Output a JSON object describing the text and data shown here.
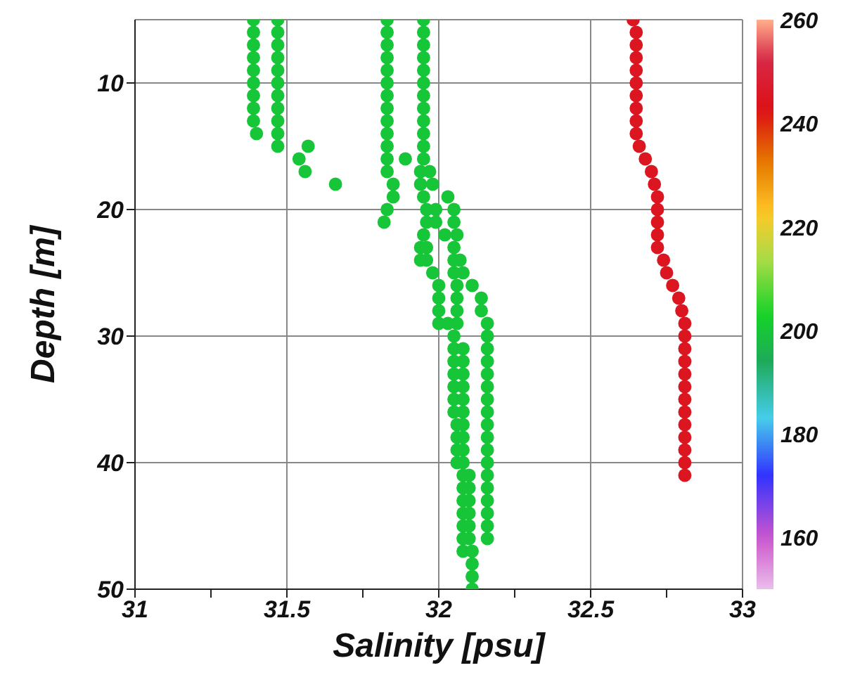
{
  "chart_data": {
    "type": "scatter",
    "xlabel": "Salinity [psu]",
    "ylabel": "Depth [m]",
    "xlim": [
      31,
      33
    ],
    "xticks": [
      31,
      {
        "value": 31.25,
        "label": null
      },
      31.5,
      {
        "value": 31.75,
        "label": null
      },
      32,
      {
        "value": 32.25,
        "label": null
      },
      32.5,
      {
        "value": 32.75,
        "label": null
      },
      33
    ],
    "ylim": [
      50,
      5
    ],
    "yticks": [
      10,
      20,
      30,
      40,
      50
    ],
    "grid": true,
    "clim": [
      150,
      260
    ],
    "cticks": [
      160,
      180,
      200,
      220,
      240,
      260
    ],
    "series": [
      {
        "x": [
          31.39,
          31.39,
          31.39,
          31.39,
          31.39,
          31.39,
          31.39,
          31.39,
          31.39,
          31.4
        ],
        "values": [
          5,
          6,
          7,
          8,
          9,
          10,
          11,
          12,
          13,
          14
        ],
        "cvalues": [
          200,
          200,
          200,
          200,
          200,
          200,
          200,
          200,
          200,
          200
        ]
      },
      {
        "x": [
          31.47,
          31.47,
          31.47,
          31.47,
          31.47,
          31.47,
          31.47,
          31.47,
          31.47,
          31.47,
          31.47
        ],
        "values": [
          5,
          6,
          7,
          8,
          9,
          10,
          11,
          12,
          13,
          14,
          15
        ],
        "cvalues": [
          200,
          200,
          200,
          200,
          200,
          200,
          200,
          200,
          200,
          200,
          200
        ]
      },
      {
        "x": [
          31.57,
          31.54,
          31.56,
          31.66,
          31.89
        ],
        "values": [
          15,
          16,
          17,
          18,
          16
        ],
        "cvalues": [
          200,
          200,
          200,
          200,
          200
        ]
      },
      {
        "x": [
          31.83,
          31.83,
          31.83,
          31.83,
          31.83,
          31.83,
          31.83,
          31.83,
          31.83,
          31.83,
          31.83,
          31.83,
          31.83,
          31.85,
          31.85,
          31.83,
          31.82
        ],
        "values": [
          5,
          6,
          7,
          8,
          9,
          10,
          11,
          12,
          13,
          14,
          15,
          16,
          17,
          18,
          19,
          20,
          21
        ],
        "cvalues": [
          200,
          200,
          200,
          200,
          200,
          200,
          200,
          200,
          200,
          200,
          200,
          200,
          200,
          200,
          200,
          200,
          200
        ]
      },
      {
        "x": [
          31.95,
          31.95,
          31.95,
          31.95,
          31.95,
          31.95,
          31.95,
          31.95,
          31.95,
          31.95,
          31.95,
          31.95,
          31.94,
          31.94,
          31.95,
          31.96,
          31.96,
          31.95,
          31.94,
          31.94,
          31.98,
          32,
          32,
          32,
          32,
          32.05,
          32.05,
          32.05,
          32.05,
          32.05,
          32.05,
          32.05,
          32.06,
          32.06,
          32.06,
          32.06,
          32.08,
          32.08,
          32.08,
          32.08,
          32.08,
          32.08,
          32.08,
          32.11,
          32.11,
          32.11
        ],
        "values": [
          5,
          6,
          7,
          8,
          9,
          10,
          11,
          12,
          13,
          14,
          15,
          16,
          17,
          18,
          19,
          20,
          21,
          22,
          23,
          24,
          25,
          26,
          27,
          28,
          29,
          30,
          31,
          32,
          33,
          34,
          35,
          36,
          37,
          38,
          39,
          40,
          41,
          42,
          43,
          44,
          45,
          46,
          47,
          48,
          49,
          50
        ],
        "cvalues": [
          200,
          200,
          200,
          200,
          200,
          200,
          200,
          200,
          200,
          200,
          200,
          200,
          200,
          200,
          200,
          200,
          200,
          200,
          200,
          200,
          200,
          200,
          200,
          200,
          200,
          200,
          200,
          200,
          200,
          200,
          200,
          200,
          200,
          200,
          200,
          200,
          200,
          200,
          200,
          200,
          200,
          200,
          200,
          200,
          200,
          200
        ]
      },
      {
        "x": [
          32.03,
          32.05,
          32.05,
          32.06,
          32.05,
          32.05,
          32.05,
          32.06,
          32.06,
          32.06,
          32.06,
          32.08,
          32.08,
          32.08,
          32.08,
          32.08,
          32.08,
          32.08,
          32.08,
          32.08,
          32.08,
          32.1,
          32.1,
          32.1,
          32.1,
          32.1,
          32.1,
          32.11
        ],
        "values": [
          19,
          20,
          21,
          22,
          23,
          24,
          25,
          26,
          27,
          28,
          29,
          31,
          32,
          33,
          34,
          35,
          36,
          37,
          38,
          39,
          40,
          41,
          42,
          43,
          44,
          45,
          46,
          47
        ],
        "cvalues": [
          200,
          200,
          200,
          200,
          200,
          200,
          200,
          200,
          200,
          200,
          200,
          200,
          200,
          200,
          200,
          200,
          200,
          200,
          200,
          200,
          200,
          200,
          200,
          200,
          200,
          200,
          200,
          200
        ]
      },
      {
        "x": [
          32.07,
          32.08,
          32.11,
          32.14,
          32.14,
          32.16,
          32.16,
          32.16,
          32.16,
          32.16,
          32.16,
          32.16,
          32.16,
          32.16,
          32.16,
          32.16,
          32.16,
          32.16,
          32.16,
          32.16,
          32.16,
          32.16,
          32.16
        ],
        "values": [
          24,
          25,
          26,
          27,
          28,
          29,
          30,
          31,
          32,
          33,
          34,
          35,
          36,
          37,
          38,
          39,
          40,
          41,
          42,
          43,
          44,
          45,
          46
        ],
        "cvalues": [
          200,
          200,
          200,
          200,
          200,
          200,
          200,
          200,
          200,
          200,
          200,
          200,
          200,
          200,
          200,
          200,
          200,
          200,
          200,
          200,
          200,
          200,
          200
        ]
      },
      {
        "x": [
          31.97,
          31.98,
          31.99,
          31.99,
          32.02,
          31.96,
          31.96,
          32.03
        ],
        "values": [
          17,
          18,
          20,
          21,
          22,
          23,
          24,
          29
        ],
        "cvalues": [
          200,
          200,
          200,
          200,
          200,
          200,
          200,
          200
        ]
      },
      {
        "x": [
          32.64,
          32.65,
          32.65,
          32.65,
          32.65,
          32.65,
          32.65,
          32.65,
          32.65,
          32.65,
          32.66,
          32.68,
          32.7,
          32.71,
          32.72,
          32.72,
          32.72,
          32.72,
          32.72,
          32.74,
          32.75,
          32.77,
          32.79,
          32.8,
          32.81,
          32.81,
          32.81,
          32.81,
          32.81,
          32.81,
          32.81,
          32.81,
          32.81,
          32.81,
          32.81,
          32.81,
          32.81
        ],
        "values": [
          5,
          6,
          7,
          8,
          9,
          10,
          11,
          12,
          13,
          14,
          15,
          16,
          17,
          18,
          19,
          20,
          21,
          22,
          23,
          24,
          25,
          26,
          27,
          28,
          29,
          30,
          31,
          32,
          33,
          34,
          35,
          36,
          37,
          38,
          39,
          40,
          41
        ],
        "cvalues": [
          245,
          245,
          245,
          245,
          245,
          245,
          245,
          245,
          245,
          245,
          245,
          245,
          245,
          245,
          245,
          245,
          245,
          245,
          245,
          245,
          245,
          245,
          245,
          245,
          245,
          245,
          245,
          245,
          245,
          245,
          245,
          245,
          245,
          245,
          245,
          245,
          245
        ]
      }
    ]
  }
}
